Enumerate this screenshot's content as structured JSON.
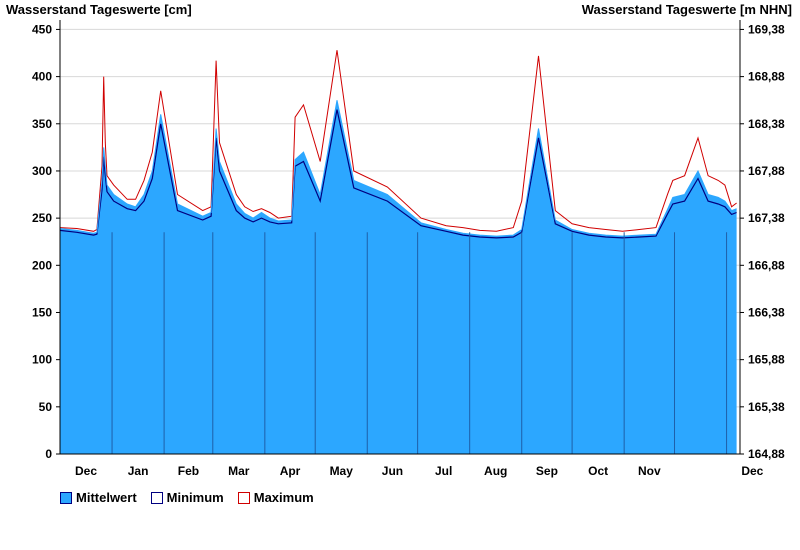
{
  "chart_data": {
    "type": "area",
    "left_axis_title": "Wasserstand Tageswerte [cm]",
    "right_axis_title": "Wasserstand Tageswerte [m NHN]",
    "ylim": [
      0,
      460
    ],
    "y_ticks": [
      0,
      50,
      100,
      150,
      200,
      250,
      300,
      350,
      400,
      450
    ],
    "right_ticks": [
      "164,88",
      "165,38",
      "165,88",
      "166,38",
      "166,88",
      "167,38",
      "167,88",
      "168,38",
      "168,88",
      "169,38"
    ],
    "months": [
      "Dec",
      "Jan",
      "Feb",
      "Mar",
      "Apr",
      "May",
      "Jun",
      "Jul",
      "Aug",
      "Sep",
      "Oct",
      "Nov",
      "Dec"
    ],
    "x": [
      0,
      10,
      20,
      22,
      25,
      26,
      27,
      28,
      32,
      40,
      45,
      50,
      55,
      60,
      70,
      85,
      90,
      93,
      95,
      105,
      110,
      115,
      120,
      125,
      130,
      138,
      140,
      145,
      155,
      165,
      175,
      195,
      215,
      230,
      240,
      250,
      260,
      270,
      275,
      285,
      295,
      305,
      315,
      325,
      335,
      345,
      355,
      362,
      365,
      372,
      380,
      386,
      392,
      396,
      400,
      403
    ],
    "series": [
      {
        "name": "Mittelwert",
        "color": "#2ca7ff",
        "values": [
          239,
          237,
          234,
          235,
          290,
          325,
          305,
          285,
          275,
          265,
          262,
          275,
          300,
          360,
          265,
          252,
          256,
          345,
          310,
          265,
          255,
          250,
          256,
          250,
          247,
          248,
          312,
          320,
          275,
          375,
          290,
          275,
          245,
          238,
          234,
          232,
          231,
          232,
          238,
          345,
          248,
          238,
          234,
          232,
          231,
          232,
          233,
          260,
          272,
          275,
          300,
          275,
          272,
          268,
          258,
          260
        ]
      },
      {
        "name": "Minimum",
        "color": "#000080",
        "values": [
          237,
          235,
          232,
          233,
          280,
          315,
          295,
          278,
          268,
          260,
          258,
          268,
          292,
          350,
          258,
          248,
          252,
          335,
          300,
          258,
          250,
          246,
          250,
          246,
          244,
          245,
          305,
          310,
          268,
          365,
          282,
          268,
          242,
          236,
          232,
          230,
          229,
          230,
          235,
          335,
          244,
          236,
          232,
          230,
          229,
          230,
          231,
          255,
          265,
          268,
          292,
          268,
          265,
          262,
          254,
          256
        ]
      },
      {
        "name": "Maximum",
        "color": "#d00000",
        "values": [
          240,
          239,
          236,
          238,
          305,
          400,
          330,
          295,
          285,
          270,
          270,
          290,
          320,
          385,
          275,
          258,
          262,
          417,
          330,
          275,
          262,
          257,
          260,
          256,
          250,
          252,
          357,
          370,
          310,
          428,
          300,
          283,
          250,
          242,
          240,
          237,
          236,
          240,
          268,
          422,
          258,
          244,
          240,
          238,
          236,
          238,
          240,
          276,
          290,
          295,
          335,
          295,
          290,
          285,
          262,
          266
        ]
      }
    ]
  }
}
